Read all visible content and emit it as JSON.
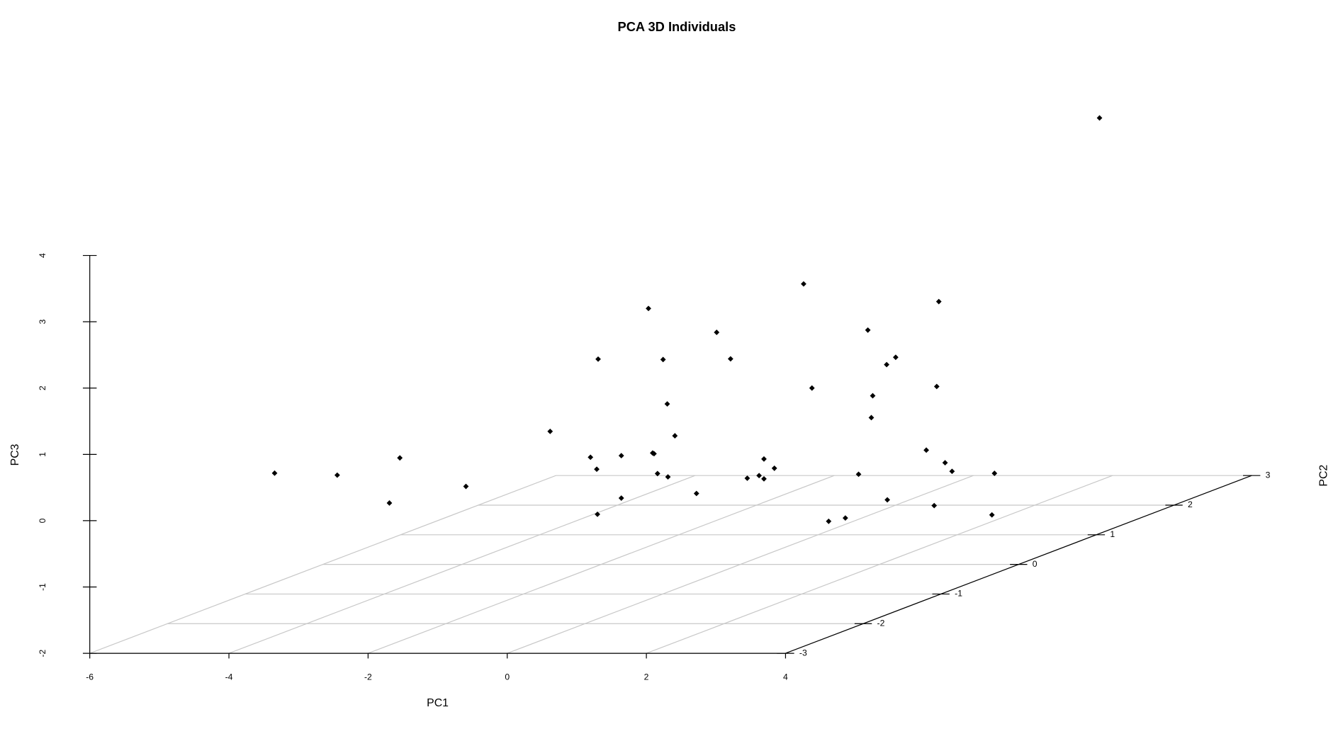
{
  "chart_data": {
    "type": "scatter3d",
    "title": "PCA 3D Individuals",
    "xlabel": "PC1",
    "ylabel": "PC2",
    "zlabel": "PC3",
    "x": [
      -4.46,
      -3.56,
      -2.66,
      -2.81,
      -1.71,
      -0.5,
      0.08,
      0.17,
      0.19,
      0.18,
      -1.71,
      -1.71,
      -1.32,
      -1.26,
      -1.24,
      -1.19,
      -1.11,
      -1.05,
      -1.04,
      -0.94,
      -0.63,
      -0.34,
      -0.14,
      0.1,
      0.27,
      0.34,
      0.34,
      0.49,
      0.91,
      1.03,
      1.27,
      1.51,
      1.7,
      -0.4,
      -0.35,
      -0.33,
      -0.13,
      -0.12,
      0.0,
      0.44,
      1.67,
      0.59,
      0.62,
      0.71,
      0.81,
      2.5,
      1.42,
      2.93
    ],
    "y": [
      -2,
      -2,
      -2,
      -2,
      -2,
      -2,
      -2,
      -2,
      -2,
      -2,
      0,
      0,
      0,
      0,
      0,
      0,
      0,
      0,
      0,
      0,
      0,
      0,
      0,
      0,
      0,
      0,
      0,
      0,
      0,
      0,
      0,
      0,
      0,
      2,
      2,
      2,
      2,
      2,
      2,
      2,
      1,
      2,
      2,
      2,
      2,
      1,
      2,
      2
    ],
    "z": [
      0.27,
      0.24,
      0.5,
      -0.18,
      0.07,
      0.9,
      0.51,
      0.33,
      1.99,
      -0.35,
      -0.36,
      -1.0,
      1.86,
      -0.32,
      -0.33,
      -0.63,
      1.09,
      0.42,
      -0.68,
      -0.06,
      -0.93,
      1.5,
      1.1,
      -0.7,
      -0.66,
      -0.41,
      -0.71,
      -0.55,
      2.23,
      0.66,
      -1.35,
      -1.3,
      -0.64,
      0.64,
      -0.68,
      -0.35,
      0.12,
      -1.92,
      0.23,
      -1.17,
      -1.56,
      -0.21,
      1.07,
      -1.36,
      -1.49,
      -1.7,
      -1.52,
      3.84
    ],
    "xlim": [
      -6,
      4
    ],
    "ylim": [
      -3,
      3
    ],
    "zlim": [
      -2,
      4
    ],
    "xticks": [
      -6,
      -4,
      -2,
      0,
      2,
      4
    ],
    "yticks": [
      -3,
      -2,
      -1,
      0,
      1,
      2,
      3
    ],
    "zticks": [
      -2,
      -1,
      0,
      1,
      2,
      3,
      4
    ],
    "grid": true,
    "color": "#000000"
  }
}
